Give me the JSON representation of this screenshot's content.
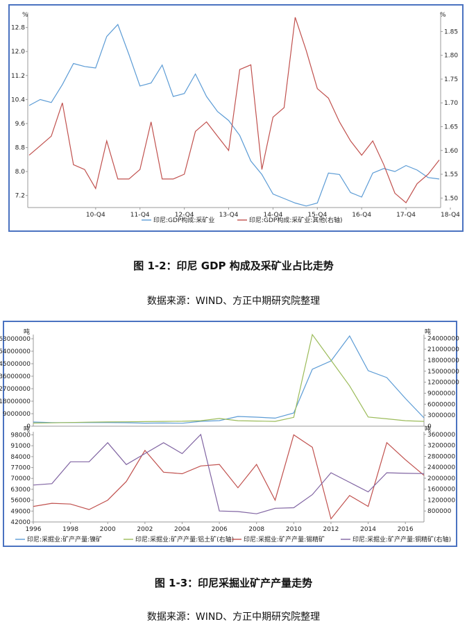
{
  "figure1": {
    "caption": "图 1-2：印尼 GDP 构成及采矿业占比走势",
    "source": "数据来源：WIND、方正中期研究院整理",
    "chart_data": {
      "type": "line",
      "left_unit": "%",
      "right_unit": "%",
      "left_ylim": [
        6.8,
        13.3
      ],
      "right_ylim": [
        1.48,
        1.89
      ],
      "left_ticks": [
        "12.8",
        "12.0",
        "11.2",
        "10.4",
        "9.6",
        "8.8",
        "8.0",
        "7.2"
      ],
      "right_ticks": [
        "1.85",
        "1.80",
        "1.75",
        "1.70",
        "1.65",
        "1.60",
        "1.55",
        "1.50"
      ],
      "x_ticks": [
        "10-Q4",
        "11-Q4",
        "12-Q4",
        "13-Q4",
        "14-Q4",
        "15-Q4",
        "16-Q4",
        "17-Q4",
        "18-Q4"
      ],
      "series": [
        {
          "name": "印尼:GDP构成:采矿业",
          "axis": "left",
          "color": "#5b9bd5",
          "values": [
            10.2,
            10.4,
            10.3,
            10.9,
            11.6,
            11.5,
            11.45,
            12.5,
            12.9,
            11.9,
            10.85,
            10.95,
            11.55,
            10.5,
            10.6,
            11.25,
            10.5,
            10.0,
            9.7,
            9.2,
            8.35,
            7.9,
            7.25,
            7.1,
            6.95,
            6.85,
            6.95,
            7.95,
            7.9,
            7.3,
            7.15,
            7.95,
            8.1,
            8.0,
            8.2,
            8.05,
            7.8,
            7.75
          ]
        },
        {
          "name": "印尼:GDP构成:采矿业:其他(右轴)",
          "axis": "right",
          "color": "#c0504d",
          "values": [
            1.59,
            1.61,
            1.63,
            1.7,
            1.57,
            1.56,
            1.52,
            1.62,
            1.54,
            1.54,
            1.56,
            1.66,
            1.54,
            1.54,
            1.55,
            1.64,
            1.66,
            1.63,
            1.6,
            1.77,
            1.78,
            1.56,
            1.67,
            1.69,
            1.88,
            1.81,
            1.73,
            1.71,
            1.66,
            1.62,
            1.59,
            1.62,
            1.57,
            1.51,
            1.49,
            1.53,
            1.55,
            1.58
          ]
        }
      ]
    }
  },
  "figure2": {
    "caption": "图 1-3：印尼采掘业矿产产量走势",
    "source": "数据来源：WIND、方正中期研究院整理",
    "top_chart": {
      "type": "line",
      "left_unit": "吨",
      "right_unit": "吨",
      "left_ylim": [
        0,
        66000000
      ],
      "right_ylim": [
        0,
        25000000
      ],
      "left_ticks": [
        "63000000",
        "54000000",
        "45000000",
        "36000000",
        "27000000",
        "18000000",
        "9000000",
        "0"
      ],
      "right_ticks": [
        "24000000",
        "21000000",
        "18000000",
        "15000000",
        "12000000",
        "9000000",
        "6000000",
        "3000000",
        "0"
      ]
    },
    "bottom_chart": {
      "type": "line",
      "left_unit": "吨",
      "right_unit": "吨",
      "left_ylim": [
        42000,
        100000
      ],
      "right_ylim": [
        400000,
        3700000
      ],
      "left_ticks": [
        "98000",
        "91000",
        "84000",
        "77000",
        "70000",
        "63000",
        "56000",
        "49000",
        "42000"
      ],
      "right_ticks": [
        "3600000",
        "3200000",
        "2800000",
        "2400000",
        "2000000",
        "1600000",
        "1200000",
        "800000"
      ],
      "x_ticks": [
        "1996",
        "1998",
        "2000",
        "2002",
        "2004",
        "2006",
        "2008",
        "2010",
        "2012",
        "2014",
        "2016"
      ]
    },
    "chart_data": {
      "type": "line",
      "x": [
        1996,
        1997,
        1998,
        1999,
        2000,
        2001,
        2002,
        2003,
        2004,
        2005,
        2006,
        2007,
        2008,
        2009,
        2010,
        2011,
        2012,
        2013,
        2014,
        2015,
        2016,
        2017
      ],
      "series": [
        {
          "name": "印尼:采掘业:矿产产量:镍矿",
          "panel": "top",
          "axis": "left",
          "color": "#5b9bd5",
          "values": [
            3000000,
            2600000,
            2600000,
            2600000,
            2600000,
            2500000,
            2200000,
            2300000,
            2100000,
            3500000,
            4000000,
            7000000,
            6500000,
            5800000,
            9500000,
            41000000,
            47000000,
            65000000,
            40000000,
            35000000,
            20000000,
            6000000
          ]
        },
        {
          "name": "印尼:采掘业:矿产产量:铝土矿(右轴)",
          "panel": "top",
          "axis": "right",
          "color": "#9bbb59",
          "values": [
            850000,
            900000,
            1000000,
            1100000,
            1150000,
            1200000,
            1250000,
            1300000,
            1350000,
            1500000,
            2100000,
            1500000,
            1400000,
            1300000,
            2400000,
            25000000,
            18000000,
            11000000,
            2500000,
            2000000,
            1500000,
            1300000
          ]
        },
        {
          "name": "印尼:采掘业:矿产产量:锡精矿",
          "panel": "bottom",
          "axis": "left",
          "color": "#c0504d",
          "values": [
            52000,
            54000,
            53500,
            50000,
            56000,
            68000,
            88000,
            74000,
            73000,
            78000,
            79000,
            64000,
            79000,
            56000,
            98000,
            90000,
            44000,
            59000,
            52000,
            93000,
            82000,
            72000
          ]
        },
        {
          "name": "印尼:采掘业:矿产产量:铜精矿(右轴)",
          "panel": "bottom",
          "axis": "right",
          "color": "#8064a2",
          "values": [
            1750000,
            1800000,
            2600000,
            2600000,
            3300000,
            2500000,
            2900000,
            3300000,
            2900000,
            3600000,
            800000,
            780000,
            700000,
            900000,
            920000,
            1400000,
            2200000,
            1850000,
            1500000,
            2200000,
            2180000,
            2170000
          ]
        }
      ]
    }
  }
}
